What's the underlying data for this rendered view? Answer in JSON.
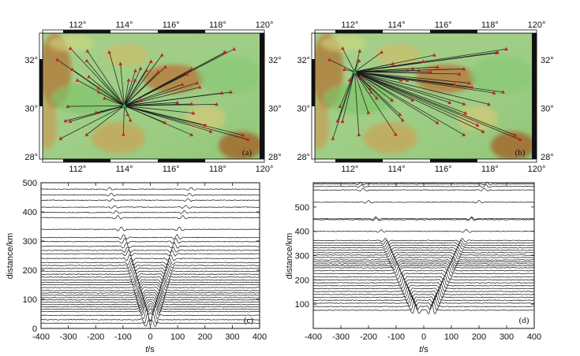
{
  "figure": {
    "maps": [
      {
        "id": "a",
        "panel_label": "(a)",
        "lon_ticks": [
          "112°",
          "114°",
          "116°",
          "118°",
          "120°"
        ],
        "lon_values": [
          112,
          114,
          116,
          118,
          120
        ],
        "lat_ticks": [
          "28°",
          "30°",
          "32°"
        ],
        "lat_values": [
          28,
          30,
          32
        ],
        "lon_range": [
          110.5,
          120
        ],
        "lat_range": [
          27.9,
          33.1
        ],
        "source_station": [
          114.0,
          30.1
        ],
        "source_color": "#1fae4f",
        "receiver_color": "#c42222"
      },
      {
        "id": "b",
        "panel_label": "(b)",
        "lon_ticks": [
          "112°",
          "114°",
          "116°",
          "118°",
          "120°"
        ],
        "lon_values": [
          112,
          114,
          116,
          118,
          120
        ],
        "lat_ticks": [
          "28°",
          "30°",
          "32°"
        ],
        "lat_values": [
          28,
          30,
          32
        ],
        "lon_range": [
          110.5,
          120
        ],
        "lat_range": [
          27.9,
          33.1
        ],
        "source_station": [
          112.2,
          31.5
        ],
        "source_color": "#1fae4f",
        "receiver_color": "#c42222"
      }
    ],
    "chart_data": [
      {
        "id": "c",
        "type": "line",
        "panel_label": "(c)",
        "xlabel_italic": "t",
        "xlabel_rest": "/s",
        "ylabel": "distance/km",
        "xlim": [
          -400,
          400
        ],
        "ylim": [
          0,
          500
        ],
        "x_ticks": [
          "-400",
          "-300",
          "-200",
          "-100",
          "0",
          "100",
          "200",
          "300",
          "400"
        ],
        "y_ticks": [
          "0",
          "100",
          "200",
          "300",
          "400",
          "500"
        ],
        "y_tick_values": [
          0,
          100,
          200,
          300,
          400,
          500
        ],
        "trace_distances_km": [
          18,
          30,
          45,
          58,
          66,
          74,
          82,
          90,
          98,
          106,
          114,
          122,
          130,
          140,
          150,
          158,
          166,
          176,
          186,
          196,
          206,
          216,
          226,
          240,
          256,
          268,
          282,
          298,
          312,
          340,
          380,
          398,
          416,
          440,
          458,
          478
        ]
      },
      {
        "id": "d",
        "type": "line",
        "panel_label": "(d)",
        "xlabel_italic": "t",
        "xlabel_rest": "/s",
        "ylabel": "distance/km",
        "xlim": [
          -400,
          400
        ],
        "ylim": [
          0,
          600
        ],
        "x_ticks": [
          "-400",
          "-300",
          "-200",
          "-100",
          "0",
          "100",
          "200",
          "300",
          "400"
        ],
        "y_ticks": [
          "100",
          "200",
          "300",
          "400",
          "500"
        ],
        "y_tick_values": [
          100,
          200,
          300,
          400,
          500
        ],
        "trace_distances_km": [
          75,
          90,
          104,
          116,
          128,
          140,
          152,
          164,
          176,
          188,
          200,
          212,
          226,
          238,
          250,
          258,
          266,
          274,
          282,
          292,
          302,
          312,
          322,
          332,
          342,
          352,
          362,
          400,
          448,
          452,
          520,
          570,
          585,
          595
        ]
      }
    ]
  }
}
